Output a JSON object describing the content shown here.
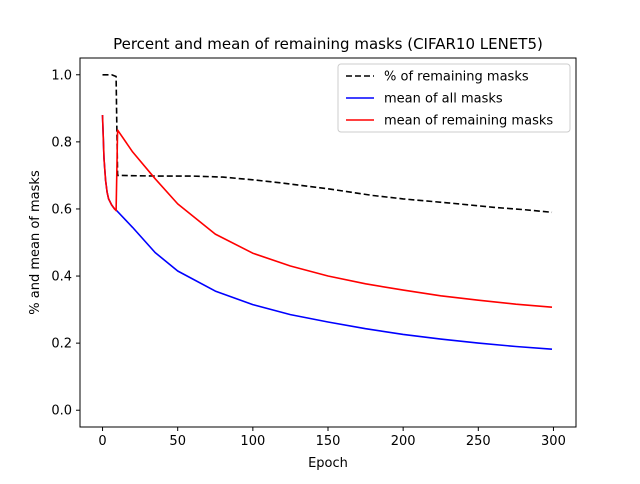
{
  "chart_data": {
    "type": "line",
    "title": "Percent and mean of remaining masks (CIFAR10 LENET5)",
    "xlabel": "Epoch",
    "ylabel": "% and mean of masks",
    "xlim": [
      -15,
      315
    ],
    "ylim": [
      -0.05,
      1.05
    ],
    "xticks": [
      0,
      50,
      100,
      150,
      200,
      250,
      300
    ],
    "xtick_labels": [
      "0",
      "50",
      "100",
      "150",
      "200",
      "250",
      "300"
    ],
    "yticks": [
      0.0,
      0.2,
      0.4,
      0.6,
      0.8,
      1.0
    ],
    "ytick_labels": [
      "0.0",
      "0.2",
      "0.4",
      "0.6",
      "0.8",
      "1.0"
    ],
    "grid": false,
    "legend_placement": "upper right",
    "series": [
      {
        "name": "% of remaining masks",
        "color": "#000000",
        "dash": "dashed",
        "x": [
          0,
          3,
          6,
          9,
          9.5,
          10,
          20,
          40,
          60,
          80,
          100,
          120,
          150,
          180,
          200,
          230,
          260,
          280,
          299
        ],
        "y": [
          1.0,
          1.0,
          1.0,
          0.995,
          0.85,
          0.7,
          0.699,
          0.698,
          0.698,
          0.695,
          0.687,
          0.677,
          0.66,
          0.64,
          0.63,
          0.618,
          0.605,
          0.598,
          0.59
        ]
      },
      {
        "name": "mean of all masks",
        "color": "#0000ff",
        "dash": "solid",
        "x": [
          0,
          1,
          2,
          3,
          4,
          6,
          8,
          9,
          20,
          35,
          50,
          75,
          100,
          125,
          150,
          175,
          200,
          225,
          250,
          275,
          299
        ],
        "y": [
          0.88,
          0.75,
          0.685,
          0.65,
          0.63,
          0.612,
          0.6,
          0.597,
          0.545,
          0.47,
          0.415,
          0.355,
          0.315,
          0.285,
          0.263,
          0.243,
          0.226,
          0.212,
          0.2,
          0.19,
          0.182
        ]
      },
      {
        "name": "mean of remaining masks",
        "color": "#ff0000",
        "dash": "solid",
        "x": [
          0,
          1,
          2,
          3,
          4,
          6,
          8,
          9,
          10,
          20,
          35,
          50,
          75,
          100,
          125,
          150,
          175,
          200,
          225,
          250,
          275,
          299
        ],
        "y": [
          0.88,
          0.75,
          0.685,
          0.65,
          0.63,
          0.612,
          0.6,
          0.595,
          0.835,
          0.77,
          0.69,
          0.615,
          0.525,
          0.468,
          0.43,
          0.4,
          0.377,
          0.358,
          0.341,
          0.328,
          0.316,
          0.307
        ]
      }
    ]
  }
}
